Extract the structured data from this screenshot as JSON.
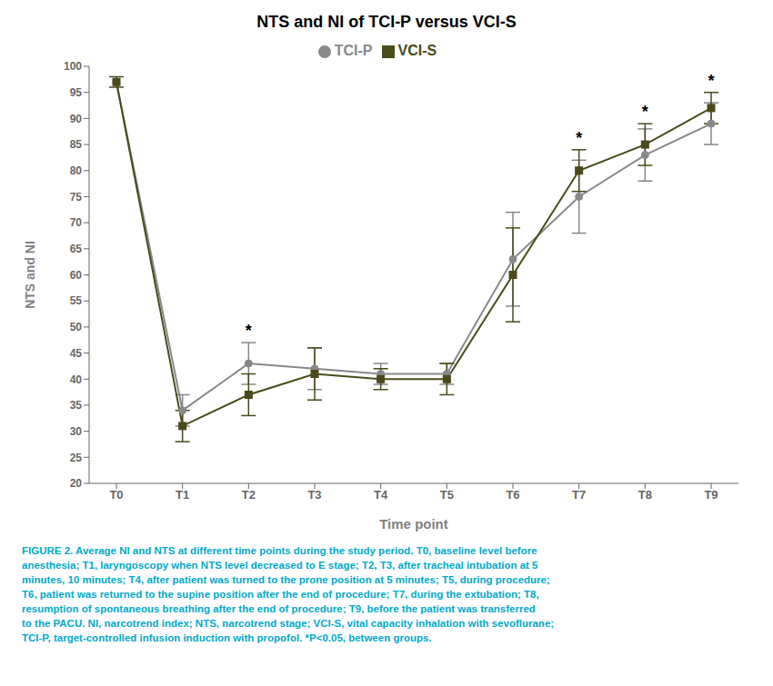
{
  "chart_data": {
    "type": "line",
    "title": "NTS and NI of TCI-P versus VCI-S",
    "x_label": "Time point",
    "y_label": "NTS and NI",
    "categories": [
      "T0",
      "T1",
      "T2",
      "T3",
      "T4",
      "T5",
      "T6",
      "T7",
      "T8",
      "T9"
    ],
    "series": [
      {
        "name": "TCI-P",
        "color": "#888888",
        "marker": "circle",
        "values": [
          97,
          34,
          43,
          42,
          41,
          41,
          63,
          75,
          83,
          89
        ],
        "errors": [
          0,
          3,
          4,
          4,
          2,
          2,
          9,
          7,
          5,
          4
        ]
      },
      {
        "name": "VCI-S",
        "color": "#4a4a1a",
        "marker": "square",
        "values": [
          97,
          31,
          37,
          41,
          40,
          40,
          60,
          80,
          85,
          92
        ],
        "errors": [
          1,
          3,
          4,
          5,
          2,
          3,
          9,
          4,
          4,
          3
        ]
      }
    ],
    "ylim": [
      20,
      100
    ],
    "yticks": [
      20,
      25,
      30,
      35,
      40,
      45,
      50,
      55,
      60,
      65,
      70,
      75,
      80,
      85,
      90,
      95,
      100
    ],
    "grid": false,
    "legend": "top",
    "annotations": [
      {
        "text": "*",
        "x": "T2"
      },
      {
        "text": "*",
        "x": "T7"
      },
      {
        "text": "*",
        "x": "T8"
      },
      {
        "text": "*",
        "x": "T9"
      }
    ],
    "caption": {
      "color": "#00AACC",
      "lines": [
        "FIGURE 2. Average NI and NTS at different time points during the study period. T0, baseline level before",
        "anesthesia; T1, laryngoscopy when NTS level decreased to E stage; T2, T3, after tracheal intubation at 5",
        "minutes, 10 minutes; T4, after patient was turned to the prone position at 5 minutes; T5, during procedure;",
        "T6, patient was returned to the supine position after the end of procedure; T7, during the extubation; T8,",
        "resumption of spontaneous breathing after the end of procedure; T9, before the patient was transferred",
        "to the PACU. NI, narcotrend index; NTS, narcotrend stage; VCI-S, vital capacity inhalation with sevoflurane;",
        "TCI-P, target-controlled infusion induction with propofol.  *P<0.05, between groups."
      ]
    }
  }
}
